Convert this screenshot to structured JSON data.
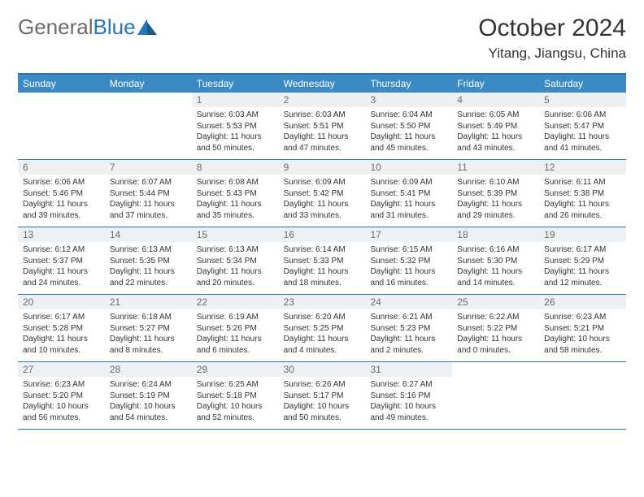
{
  "logo": {
    "text1": "General",
    "text2": "Blue"
  },
  "title": "October 2024",
  "location": "Yitang, Jiangsu, China",
  "colors": {
    "header_bg": "#3b8ac4",
    "border": "#2875b8",
    "daynum_bg": "#eef1f3",
    "daynum_color": "#6b6b6b",
    "text": "#333333",
    "logo_gray": "#6b6b6b",
    "logo_blue": "#2875b8"
  },
  "weekdays": [
    "Sunday",
    "Monday",
    "Tuesday",
    "Wednesday",
    "Thursday",
    "Friday",
    "Saturday"
  ],
  "weeks": [
    [
      {
        "empty": true
      },
      {
        "empty": true
      },
      {
        "day": "1",
        "sunrise": "Sunrise: 6:03 AM",
        "sunset": "Sunset: 5:53 PM",
        "daylight": "Daylight: 11 hours and 50 minutes."
      },
      {
        "day": "2",
        "sunrise": "Sunrise: 6:03 AM",
        "sunset": "Sunset: 5:51 PM",
        "daylight": "Daylight: 11 hours and 47 minutes."
      },
      {
        "day": "3",
        "sunrise": "Sunrise: 6:04 AM",
        "sunset": "Sunset: 5:50 PM",
        "daylight": "Daylight: 11 hours and 45 minutes."
      },
      {
        "day": "4",
        "sunrise": "Sunrise: 6:05 AM",
        "sunset": "Sunset: 5:49 PM",
        "daylight": "Daylight: 11 hours and 43 minutes."
      },
      {
        "day": "5",
        "sunrise": "Sunrise: 6:06 AM",
        "sunset": "Sunset: 5:47 PM",
        "daylight": "Daylight: 11 hours and 41 minutes."
      }
    ],
    [
      {
        "day": "6",
        "sunrise": "Sunrise: 6:06 AM",
        "sunset": "Sunset: 5:46 PM",
        "daylight": "Daylight: 11 hours and 39 minutes."
      },
      {
        "day": "7",
        "sunrise": "Sunrise: 6:07 AM",
        "sunset": "Sunset: 5:44 PM",
        "daylight": "Daylight: 11 hours and 37 minutes."
      },
      {
        "day": "8",
        "sunrise": "Sunrise: 6:08 AM",
        "sunset": "Sunset: 5:43 PM",
        "daylight": "Daylight: 11 hours and 35 minutes."
      },
      {
        "day": "9",
        "sunrise": "Sunrise: 6:09 AM",
        "sunset": "Sunset: 5:42 PM",
        "daylight": "Daylight: 11 hours and 33 minutes."
      },
      {
        "day": "10",
        "sunrise": "Sunrise: 6:09 AM",
        "sunset": "Sunset: 5:41 PM",
        "daylight": "Daylight: 11 hours and 31 minutes."
      },
      {
        "day": "11",
        "sunrise": "Sunrise: 6:10 AM",
        "sunset": "Sunset: 5:39 PM",
        "daylight": "Daylight: 11 hours and 29 minutes."
      },
      {
        "day": "12",
        "sunrise": "Sunrise: 6:11 AM",
        "sunset": "Sunset: 5:38 PM",
        "daylight": "Daylight: 11 hours and 26 minutes."
      }
    ],
    [
      {
        "day": "13",
        "sunrise": "Sunrise: 6:12 AM",
        "sunset": "Sunset: 5:37 PM",
        "daylight": "Daylight: 11 hours and 24 minutes."
      },
      {
        "day": "14",
        "sunrise": "Sunrise: 6:13 AM",
        "sunset": "Sunset: 5:35 PM",
        "daylight": "Daylight: 11 hours and 22 minutes."
      },
      {
        "day": "15",
        "sunrise": "Sunrise: 6:13 AM",
        "sunset": "Sunset: 5:34 PM",
        "daylight": "Daylight: 11 hours and 20 minutes."
      },
      {
        "day": "16",
        "sunrise": "Sunrise: 6:14 AM",
        "sunset": "Sunset: 5:33 PM",
        "daylight": "Daylight: 11 hours and 18 minutes."
      },
      {
        "day": "17",
        "sunrise": "Sunrise: 6:15 AM",
        "sunset": "Sunset: 5:32 PM",
        "daylight": "Daylight: 11 hours and 16 minutes."
      },
      {
        "day": "18",
        "sunrise": "Sunrise: 6:16 AM",
        "sunset": "Sunset: 5:30 PM",
        "daylight": "Daylight: 11 hours and 14 minutes."
      },
      {
        "day": "19",
        "sunrise": "Sunrise: 6:17 AM",
        "sunset": "Sunset: 5:29 PM",
        "daylight": "Daylight: 11 hours and 12 minutes."
      }
    ],
    [
      {
        "day": "20",
        "sunrise": "Sunrise: 6:17 AM",
        "sunset": "Sunset: 5:28 PM",
        "daylight": "Daylight: 11 hours and 10 minutes."
      },
      {
        "day": "21",
        "sunrise": "Sunrise: 6:18 AM",
        "sunset": "Sunset: 5:27 PM",
        "daylight": "Daylight: 11 hours and 8 minutes."
      },
      {
        "day": "22",
        "sunrise": "Sunrise: 6:19 AM",
        "sunset": "Sunset: 5:26 PM",
        "daylight": "Daylight: 11 hours and 6 minutes."
      },
      {
        "day": "23",
        "sunrise": "Sunrise: 6:20 AM",
        "sunset": "Sunset: 5:25 PM",
        "daylight": "Daylight: 11 hours and 4 minutes."
      },
      {
        "day": "24",
        "sunrise": "Sunrise: 6:21 AM",
        "sunset": "Sunset: 5:23 PM",
        "daylight": "Daylight: 11 hours and 2 minutes."
      },
      {
        "day": "25",
        "sunrise": "Sunrise: 6:22 AM",
        "sunset": "Sunset: 5:22 PM",
        "daylight": "Daylight: 11 hours and 0 minutes."
      },
      {
        "day": "26",
        "sunrise": "Sunrise: 6:23 AM",
        "sunset": "Sunset: 5:21 PM",
        "daylight": "Daylight: 10 hours and 58 minutes."
      }
    ],
    [
      {
        "day": "27",
        "sunrise": "Sunrise: 6:23 AM",
        "sunset": "Sunset: 5:20 PM",
        "daylight": "Daylight: 10 hours and 56 minutes."
      },
      {
        "day": "28",
        "sunrise": "Sunrise: 6:24 AM",
        "sunset": "Sunset: 5:19 PM",
        "daylight": "Daylight: 10 hours and 54 minutes."
      },
      {
        "day": "29",
        "sunrise": "Sunrise: 6:25 AM",
        "sunset": "Sunset: 5:18 PM",
        "daylight": "Daylight: 10 hours and 52 minutes."
      },
      {
        "day": "30",
        "sunrise": "Sunrise: 6:26 AM",
        "sunset": "Sunset: 5:17 PM",
        "daylight": "Daylight: 10 hours and 50 minutes."
      },
      {
        "day": "31",
        "sunrise": "Sunrise: 6:27 AM",
        "sunset": "Sunset: 5:16 PM",
        "daylight": "Daylight: 10 hours and 49 minutes."
      },
      {
        "empty": true
      },
      {
        "empty": true
      }
    ]
  ]
}
